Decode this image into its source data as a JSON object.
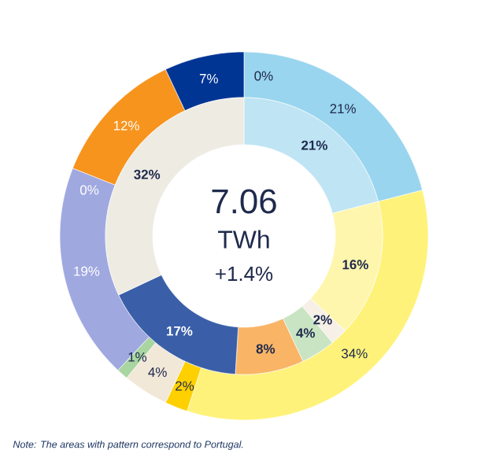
{
  "chart_data": {
    "type": "donut",
    "series": [
      {
        "values": [
          0,
          21,
          34,
          2,
          4,
          1,
          19,
          0,
          12,
          7
        ],
        "value_labels": [
          "0%",
          "21%",
          "34%",
          "2%",
          "4%",
          "1%",
          "19%",
          "0%",
          "12%",
          "7%"
        ],
        "colors": [
          "#99d5ee",
          "#99d5ee",
          "#fff27a",
          "#ffd000",
          "#f2e8d8",
          "#a8d5a0",
          "#a0a8e0",
          "#a0a8e0",
          "#f7941d",
          "#003594"
        ]
      },
      {
        "values": [
          21,
          16,
          2,
          4,
          8,
          17,
          32
        ],
        "value_labels": [
          "21%",
          "16%",
          "2%",
          "4%",
          "8%",
          "17%",
          "32%"
        ],
        "colors": [
          "#bfe4f4",
          "#fff6ad",
          "#f6f0e6",
          "#c8e4c2",
          "#f9b465",
          "#3a5fa8",
          "#eeebe3"
        ]
      }
    ],
    "annotations": [
      "7.06",
      "TWh",
      "+1.4%",
      "Note: The  areas with pattern correspond  to Portugal."
    ]
  }
}
